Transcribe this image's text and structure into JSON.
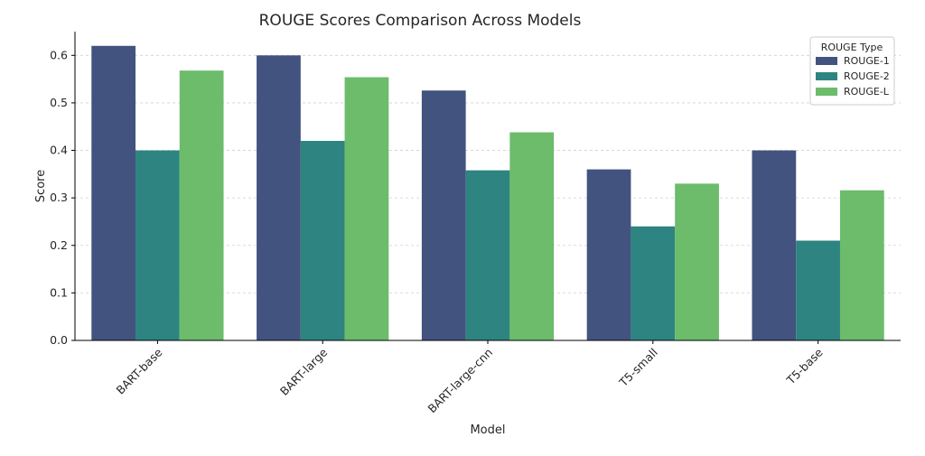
{
  "chart_data": {
    "type": "bar",
    "title": "ROUGE Scores Comparison Across Models",
    "xlabel": "Model",
    "ylabel": "Score",
    "categories": [
      "BART-base",
      "BART-large",
      "BART-large-cnn",
      "T5-small",
      "T5-base"
    ],
    "series": [
      {
        "name": "ROUGE-1",
        "color": "#43537f",
        "values": [
          0.62,
          0.6,
          0.526,
          0.36,
          0.4
        ]
      },
      {
        "name": "ROUGE-2",
        "color": "#2d8480",
        "values": [
          0.4,
          0.42,
          0.358,
          0.24,
          0.21
        ]
      },
      {
        "name": "ROUGE-L",
        "color": "#6cbc6b",
        "values": [
          0.568,
          0.554,
          0.438,
          0.33,
          0.316
        ]
      }
    ],
    "ylim": [
      0,
      0.65
    ],
    "yticks": [
      0.0,
      0.1,
      0.2,
      0.3,
      0.4,
      0.5,
      0.6
    ],
    "ytick_labels": [
      "0.0",
      "0.1",
      "0.2",
      "0.3",
      "0.4",
      "0.5",
      "0.6"
    ],
    "grid": "horizontal-dashed",
    "legend": {
      "title": "ROUGE Type",
      "placement": "top-right"
    }
  }
}
